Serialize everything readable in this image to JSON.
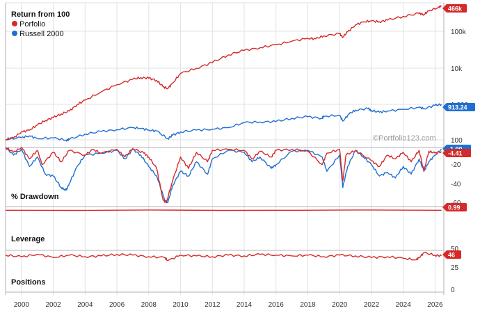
{
  "chart_data": {
    "type": "line",
    "colors": {
      "portfolio": "#d42a2a",
      "benchmark": "#1f6fd1",
      "grid": "#e2e2e2",
      "separator": "#b0b0b0"
    },
    "x_ticks": [
      "2000",
      "2002",
      "2004",
      "2006",
      "2008",
      "2010",
      "2012",
      "2014",
      "2016",
      "2018",
      "2020",
      "2022",
      "2024",
      "2026"
    ],
    "watermark": "©Portfolio123.com",
    "panels": [
      {
        "id": "returns",
        "title": "Return from 100",
        "scale": "log",
        "y_ticks": [
          "100",
          "1,000",
          "10k",
          "100k"
        ],
        "end_labels": [
          "466k",
          "913.24"
        ],
        "series": [
          {
            "name": "Porfolio",
            "color": "#d42a2a",
            "x": [
              1999.0,
              1999.5,
              2000.0,
              2000.5,
              2001.0,
              2001.5,
              2002.0,
              2002.5,
              2003.0,
              2003.5,
              2004.0,
              2005.0,
              2006.0,
              2007.0,
              2007.5,
              2008.0,
              2008.5,
              2008.9,
              2009.2,
              2009.5,
              2010.0,
              2011.0,
              2012.0,
              2013.0,
              2014.0,
              2015.0,
              2016.0,
              2017.0,
              2018.0,
              2018.5,
              2019.0,
              2020.0,
              2020.2,
              2020.5,
              2021.0,
              2021.5,
              2022.0,
              2022.5,
              2023.0,
              2024.0,
              2025.0,
              2025.3,
              2025.6,
              2026.2,
              2026.4
            ],
            "y": [
              100,
              110,
              160,
              180,
              250,
              330,
              400,
              500,
              600,
              900,
              1200,
              2000,
              3200,
              4500,
              5000,
              4800,
              4200,
              2800,
              2500,
              3500,
              6500,
              9000,
              13000,
              21000,
              28000,
              33000,
              40000,
              50000,
              60000,
              58000,
              70000,
              80000,
              65000,
              90000,
              140000,
              170000,
              180000,
              170000,
              190000,
              240000,
              290000,
              270000,
              340000,
              420000,
              466000
            ]
          },
          {
            "name": "Russell 2000",
            "color": "#1f6fd1",
            "x": [
              1999.0,
              2000.0,
              2000.5,
              2001.0,
              2002.0,
              2002.8,
              2003.0,
              2004.0,
              2005.0,
              2006.0,
              2007.0,
              2007.5,
              2008.0,
              2008.5,
              2009.2,
              2009.5,
              2010.0,
              2011.0,
              2012.0,
              2013.0,
              2014.0,
              2015.0,
              2016.0,
              2017.0,
              2018.0,
              2018.9,
              2019.0,
              2020.0,
              2020.2,
              2020.6,
              2021.0,
              2021.8,
              2022.0,
              2022.5,
              2023.0,
              2024.0,
              2025.0,
              2025.3,
              2026.0,
              2026.4
            ],
            "y": [
              100,
              112,
              125,
              105,
              110,
              95,
              100,
              140,
              165,
              185,
              210,
              200,
              180,
              170,
              105,
              130,
              160,
              180,
              190,
              210,
              290,
              300,
              310,
              380,
              420,
              380,
              430,
              460,
              320,
              500,
              640,
              700,
              620,
              560,
              600,
              670,
              760,
              700,
              860,
              913.24
            ]
          }
        ]
      },
      {
        "id": "drawdown",
        "title": "% Drawdown",
        "y_ticks": [
          "-20",
          "-40",
          "-60"
        ],
        "end_labels": [
          "-1.90",
          "-4.41"
        ],
        "series": [
          {
            "name": "Porfolio",
            "color": "#d42a2a",
            "x": [
              1999.0,
              1999.5,
              2000.0,
              2000.5,
              2001.0,
              2001.3,
              2002.0,
              2002.5,
              2003.0,
              2004.0,
              2004.5,
              2005.0,
              2006.0,
              2006.5,
              2007.0,
              2007.7,
              2008.0,
              2008.5,
              2008.9,
              2009.1,
              2009.5,
              2010.0,
              2010.5,
              2011.0,
              2011.7,
              2012.0,
              2013.0,
              2014.0,
              2014.5,
              2015.0,
              2015.7,
              2016.0,
              2017.0,
              2018.0,
              2018.9,
              2019.2,
              2020.0,
              2020.2,
              2020.4,
              2021.0,
              2022.0,
              2022.5,
              2023.0,
              2023.5,
              2024.0,
              2024.5,
              2025.0,
              2025.3,
              2025.6,
              2026.0,
              2026.4
            ],
            "y": [
              0,
              -5,
              0,
              -12,
              -3,
              -18,
              -5,
              -15,
              -3,
              -8,
              -2,
              -6,
              -2,
              -10,
              -1,
              -6,
              -10,
              -22,
              -55,
              -58,
              -35,
              -10,
              -22,
              -5,
              -15,
              -3,
              -2,
              -3,
              -12,
              -4,
              -10,
              -3,
              -2,
              -4,
              -18,
              -6,
              -2,
              -35,
              -8,
              -3,
              -14,
              -20,
              -8,
              -12,
              -5,
              -15,
              -3,
              -25,
              -4,
              -6,
              -4.41
            ]
          },
          {
            "name": "Russell 2000",
            "color": "#1f6fd1",
            "x": [
              1999.0,
              1999.5,
              2000.0,
              2000.5,
              2001.0,
              2001.5,
              2002.0,
              2002.5,
              2002.8,
              2003.0,
              2003.5,
              2004.0,
              2005.0,
              2006.0,
              2006.5,
              2007.0,
              2007.5,
              2008.0,
              2008.5,
              2009.0,
              2009.2,
              2009.5,
              2010.0,
              2010.5,
              2011.0,
              2011.7,
              2012.0,
              2013.0,
              2014.0,
              2014.5,
              2015.0,
              2015.7,
              2016.0,
              2017.0,
              2018.0,
              2018.9,
              2019.2,
              2020.0,
              2020.2,
              2020.5,
              2021.0,
              2021.5,
              2022.0,
              2022.5,
              2023.0,
              2023.5,
              2024.0,
              2024.5,
              2025.0,
              2025.3,
              2025.6,
              2026.0,
              2026.4
            ],
            "y": [
              0,
              -8,
              -2,
              -20,
              -10,
              -28,
              -30,
              -42,
              -45,
              -38,
              -20,
              -8,
              -6,
              -3,
              -12,
              -2,
              -8,
              -20,
              -30,
              -55,
              -58,
              -40,
              -25,
              -30,
              -15,
              -28,
              -12,
              -3,
              -5,
              -15,
              -10,
              -22,
              -18,
              -4,
              -3,
              -10,
              -25,
              -8,
              -42,
              -20,
              -3,
              -10,
              -18,
              -30,
              -26,
              -32,
              -20,
              -28,
              -12,
              -25,
              -15,
              -8,
              -1.9
            ]
          }
        ]
      },
      {
        "id": "leverage",
        "title": "Leverage",
        "y_ticks": [],
        "end_labels": [
          "0.99"
        ],
        "series": [
          {
            "name": "Porfolio",
            "color": "#d42a2a",
            "x": [
              1999.0,
              2026.4
            ],
            "y": [
              0.99,
              0.99
            ]
          }
        ]
      },
      {
        "id": "positions",
        "title": "Positions",
        "y_ticks": [
          "50",
          "25",
          "0"
        ],
        "end_labels": [
          "46"
        ],
        "series": [
          {
            "name": "Porfolio",
            "color": "#d42a2a",
            "x": [
              1999.0,
              2000.0,
              2001.0,
              2002.0,
              2003.0,
              2004.0,
              2005.0,
              2006.0,
              2007.0,
              2008.0,
              2009.0,
              2009.2,
              2010.0,
              2011.0,
              2012.0,
              2013.0,
              2014.0,
              2015.0,
              2016.0,
              2017.0,
              2018.0,
              2019.0,
              2020.0,
              2021.0,
              2022.0,
              2023.0,
              2024.0,
              2024.8,
              2025.0,
              2025.3,
              2026.0,
              2026.4
            ],
            "y": [
              47,
              45,
              48,
              44,
              47,
              45,
              46,
              48,
              47,
              45,
              44,
              40,
              47,
              46,
              45,
              47,
              46,
              48,
              47,
              46,
              47,
              45,
              47,
              46,
              44,
              45,
              43,
              41,
              44,
              50,
              47,
              46
            ]
          }
        ]
      }
    ]
  }
}
